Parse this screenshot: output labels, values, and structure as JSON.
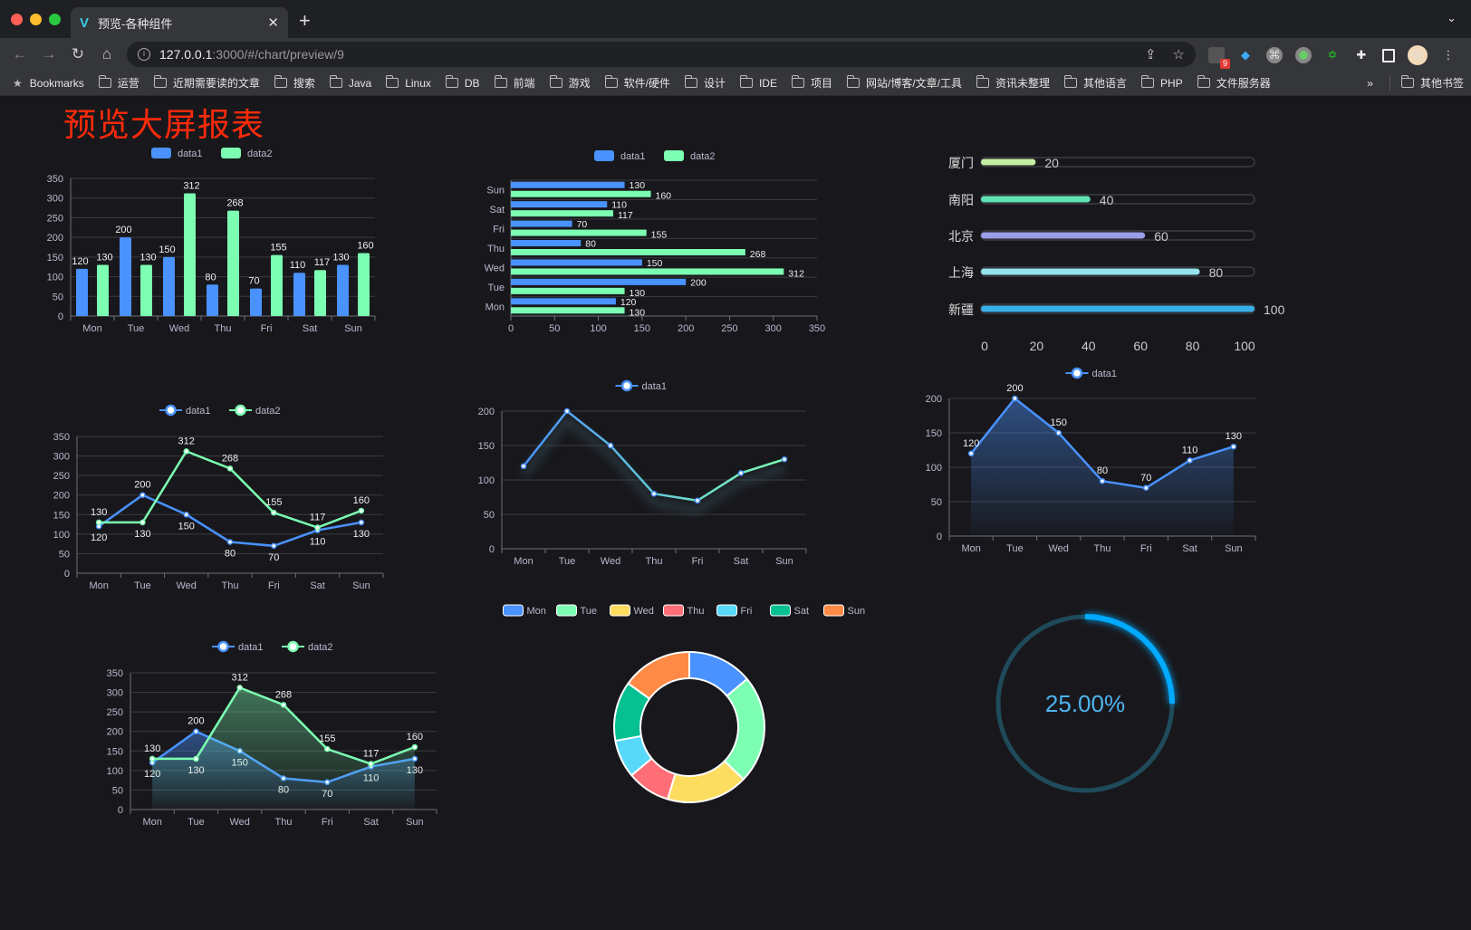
{
  "browser": {
    "tab_title": "预览-各种组件",
    "url_host": "127.0.0.1",
    "url_path": ":3000/#/chart/preview/9",
    "extension_badge": "9",
    "bookmarks_label": "Bookmarks",
    "bookmarks": [
      "运营",
      "近期需要读的文章",
      "搜索",
      "Java",
      "Linux",
      "DB",
      "前端",
      "游戏",
      "软件/硬件",
      "设计",
      "IDE",
      "项目",
      "网站/博客/文章/工具",
      "资讯未整理",
      "其他语言",
      "PHP",
      "文件服务器"
    ],
    "more": "»",
    "other_bookmarks": "其他书签"
  },
  "page": {
    "title": "预览大屏报表",
    "title_color": "#ff2a0a",
    "background": "#18181c"
  },
  "chart_data": [
    {
      "id": "bar",
      "type": "bar",
      "categories": [
        "Mon",
        "Tue",
        "Wed",
        "Thu",
        "Fri",
        "Sat",
        "Sun"
      ],
      "series": [
        {
          "name": "data1",
          "values": [
            120,
            200,
            150,
            80,
            70,
            110,
            130
          ],
          "color": "#4992ff"
        },
        {
          "name": "data2",
          "values": [
            130,
            130,
            312,
            268,
            155,
            117,
            160
          ],
          "color": "#7cffb2"
        }
      ],
      "ylim": [
        0,
        350
      ],
      "y_interval": 50,
      "grid": true,
      "legend": "top-center",
      "data_labels": true
    },
    {
      "id": "hbar",
      "type": "bar",
      "orientation": "horizontal",
      "categories": [
        "Mon",
        "Tue",
        "Wed",
        "Thu",
        "Fri",
        "Sat",
        "Sun"
      ],
      "series": [
        {
          "name": "data1",
          "values": [
            120,
            200,
            150,
            80,
            70,
            110,
            130
          ],
          "color": "#4992ff"
        },
        {
          "name": "data2",
          "values": [
            130,
            130,
            312,
            268,
            155,
            117,
            160
          ],
          "color": "#7cffb2"
        }
      ],
      "xlim": [
        0,
        350
      ],
      "x_interval": 50,
      "grid": true,
      "legend": "top-center",
      "data_labels": true
    },
    {
      "id": "progress",
      "type": "bar",
      "orientation": "horizontal",
      "categories": [
        "厦门",
        "南阳",
        "北京",
        "上海",
        "新疆"
      ],
      "values": [
        20,
        40,
        60,
        80,
        100
      ],
      "colors": [
        "#c5f0a4",
        "#5fe3b5",
        "#9b9ee8",
        "#95e3ee",
        "#3ab0e8"
      ],
      "xlim": [
        0,
        100
      ],
      "x_interval": 20,
      "grid": false,
      "data_labels": true
    },
    {
      "id": "line1",
      "type": "line",
      "categories": [
        "Mon",
        "Tue",
        "Wed",
        "Thu",
        "Fri",
        "Sat",
        "Sun"
      ],
      "series": [
        {
          "name": "data1",
          "values": [
            120,
            200,
            150,
            80,
            70,
            110,
            130
          ],
          "color": "#4992ff"
        },
        {
          "name": "data2",
          "values": [
            130,
            130,
            312,
            268,
            155,
            117,
            160
          ],
          "color": "#7cffb2"
        }
      ],
      "ylim": [
        0,
        350
      ],
      "y_interval": 50,
      "grid": true,
      "legend": "top-center",
      "data_labels": true
    },
    {
      "id": "line2",
      "type": "line",
      "categories": [
        "Mon",
        "Tue",
        "Wed",
        "Thu",
        "Fri",
        "Sat",
        "Sun"
      ],
      "series": [
        {
          "name": "data1",
          "values": [
            120,
            200,
            150,
            80,
            70,
            110,
            130
          ],
          "color": "#4992ff",
          "color_end": "#7cffb2"
        }
      ],
      "ylim": [
        0,
        200
      ],
      "y_interval": 50,
      "grid": true,
      "legend": "top-center",
      "data_labels": false,
      "shadow": true
    },
    {
      "id": "area1",
      "type": "area",
      "categories": [
        "Mon",
        "Tue",
        "Wed",
        "Thu",
        "Fri",
        "Sat",
        "Sun"
      ],
      "series": [
        {
          "name": "data1",
          "values": [
            120,
            200,
            150,
            80,
            70,
            110,
            130
          ],
          "color": "#4992ff"
        }
      ],
      "ylim": [
        0,
        200
      ],
      "y_interval": 50,
      "grid": true,
      "legend": "top-center",
      "data_labels": true
    },
    {
      "id": "area2",
      "type": "area",
      "categories": [
        "Mon",
        "Tue",
        "Wed",
        "Thu",
        "Fri",
        "Sat",
        "Sun"
      ],
      "series": [
        {
          "name": "data1",
          "values": [
            120,
            200,
            150,
            80,
            70,
            110,
            130
          ],
          "color": "#4992ff"
        },
        {
          "name": "data2",
          "values": [
            130,
            130,
            312,
            268,
            155,
            117,
            160
          ],
          "color": "#7cffb2"
        }
      ],
      "ylim": [
        0,
        350
      ],
      "y_interval": 50,
      "grid": true,
      "legend": "top-center",
      "data_labels": true
    },
    {
      "id": "pie",
      "type": "pie",
      "categories": [
        "Mon",
        "Tue",
        "Wed",
        "Thu",
        "Fri",
        "Sat",
        "Sun"
      ],
      "values": [
        120,
        200,
        150,
        80,
        70,
        110,
        130
      ],
      "colors": [
        "#4992ff",
        "#7cffb2",
        "#fddd60",
        "#ff6e76",
        "#58d9f9",
        "#05c091",
        "#ff8a45"
      ],
      "donut": true,
      "legend": "top-center"
    },
    {
      "id": "gauge",
      "type": "gauge",
      "value": 25,
      "label": "25.00%",
      "color": "#00aaff",
      "track_color": "#1f4a5a"
    }
  ]
}
